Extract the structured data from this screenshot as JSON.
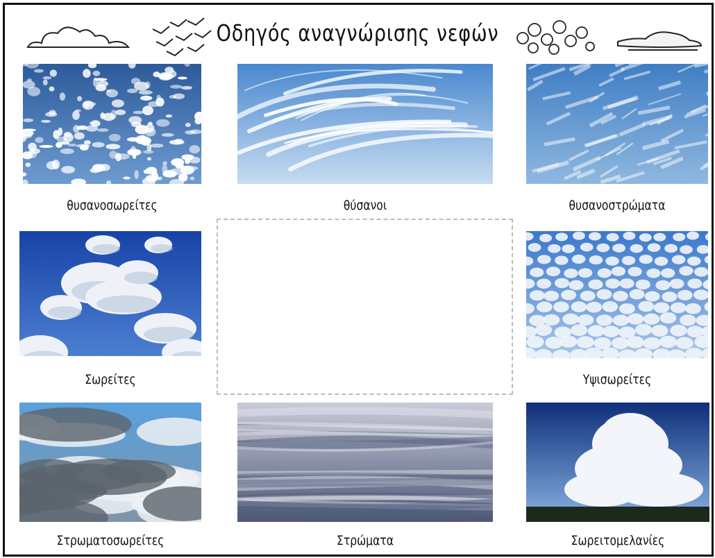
{
  "header": {
    "title": "Οδηγός αναγνώρισης νεφών"
  },
  "cards": [
    {
      "label": "θυσανοσωρείτες"
    },
    {
      "label": "θύσανοι"
    },
    {
      "label": "θυσανοστρώματα"
    },
    {
      "label": "Σωρείτες"
    },
    {
      "label": "Υψισωρείτες"
    },
    {
      "label": "Στρωματοσωρείτες"
    },
    {
      "label": "Στρώματα"
    },
    {
      "label": "Σωρειτομελανίες"
    }
  ]
}
